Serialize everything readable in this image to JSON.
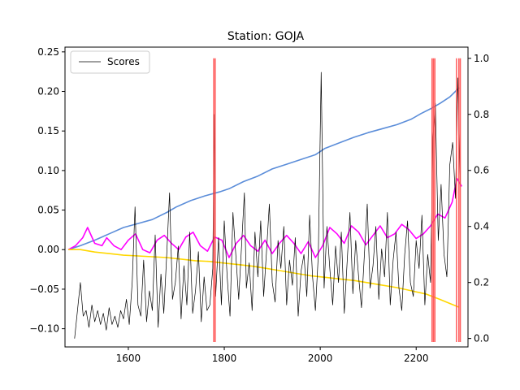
{
  "chart_data": {
    "type": "line",
    "title": "Station: GOJA",
    "x_range": [
      1468,
      2308
    ],
    "x_ticks": [
      1600,
      1800,
      2000,
      2200
    ],
    "y_left": {
      "ylim": [
        -0.123,
        0.256
      ],
      "ticks": [
        -0.1,
        -0.05,
        0.0,
        0.05,
        0.1,
        0.15,
        0.2,
        0.25
      ],
      "tick_labels": [
        "−0.10",
        "−0.05",
        "0.00",
        "0.05",
        "0.10",
        "0.15",
        "0.20",
        "0.25"
      ]
    },
    "y_right": {
      "ylim": [
        -0.03,
        1.04
      ],
      "ticks": [
        0.0,
        0.2,
        0.4,
        0.6,
        0.8,
        1.0
      ],
      "tick_labels": [
        "0.0",
        "0.2",
        "0.4",
        "0.6",
        "0.8",
        "1.0"
      ]
    },
    "legend": {
      "placement": "top-left",
      "entries": [
        {
          "label": "Scores",
          "color": "#000000"
        }
      ]
    },
    "series": [
      {
        "axis": "left",
        "color": "#5b8dd9",
        "x": [
          1475,
          1500,
          1530,
          1560,
          1590,
          1620,
          1650,
          1680,
          1700,
          1730,
          1760,
          1790,
          1810,
          1840,
          1870,
          1900,
          1930,
          1960,
          1990,
          2010,
          2040,
          2070,
          2100,
          2130,
          2160,
          2190,
          2210,
          2230,
          2250,
          2270,
          2290
        ],
        "y": [
          0.0,
          0.005,
          0.012,
          0.02,
          0.028,
          0.033,
          0.038,
          0.047,
          0.054,
          0.062,
          0.068,
          0.073,
          0.077,
          0.086,
          0.093,
          0.102,
          0.108,
          0.114,
          0.12,
          0.128,
          0.135,
          0.142,
          0.148,
          0.153,
          0.158,
          0.165,
          0.172,
          0.178,
          0.185,
          0.193,
          0.205
        ]
      },
      {
        "axis": "left",
        "color": "#ff00ff",
        "x": [
          1475,
          1490,
          1505,
          1515,
          1530,
          1545,
          1555,
          1570,
          1585,
          1600,
          1615,
          1630,
          1645,
          1660,
          1675,
          1690,
          1705,
          1720,
          1735,
          1750,
          1765,
          1780,
          1795,
          1810,
          1825,
          1840,
          1855,
          1870,
          1885,
          1900,
          1915,
          1930,
          1945,
          1960,
          1975,
          1990,
          2005,
          2020,
          2035,
          2050,
          2065,
          2080,
          2095,
          2110,
          2125,
          2140,
          2155,
          2170,
          2185,
          2200,
          2215,
          2230,
          2245,
          2260,
          2275,
          2285,
          2295
        ],
        "y": [
          0.0,
          0.005,
          0.015,
          0.028,
          0.008,
          0.005,
          0.015,
          0.005,
          0.0,
          0.012,
          0.02,
          0.0,
          -0.004,
          0.012,
          0.018,
          0.008,
          0.0,
          0.016,
          0.022,
          0.005,
          -0.002,
          0.016,
          0.012,
          -0.01,
          0.008,
          0.018,
          0.005,
          -0.002,
          0.012,
          -0.005,
          0.008,
          0.018,
          0.008,
          -0.005,
          0.01,
          -0.01,
          0.005,
          0.028,
          0.02,
          0.008,
          0.03,
          0.022,
          0.006,
          0.018,
          0.03,
          0.015,
          0.02,
          0.032,
          0.025,
          0.014,
          0.02,
          0.03,
          0.045,
          0.04,
          0.06,
          0.09,
          0.08
        ]
      },
      {
        "axis": "left",
        "color": "#ffd700",
        "x": [
          1475,
          1500,
          1530,
          1560,
          1590,
          1620,
          1650,
          1680,
          1710,
          1740,
          1770,
          1800,
          1830,
          1860,
          1890,
          1920,
          1950,
          1980,
          2010,
          2040,
          2070,
          2100,
          2130,
          2160,
          2190,
          2220,
          2250,
          2270,
          2290
        ],
        "y": [
          0.0,
          0.0,
          -0.003,
          -0.005,
          -0.007,
          -0.008,
          -0.009,
          -0.01,
          -0.012,
          -0.014,
          -0.015,
          -0.017,
          -0.019,
          -0.021,
          -0.024,
          -0.027,
          -0.03,
          -0.033,
          -0.035,
          -0.037,
          -0.039,
          -0.042,
          -0.045,
          -0.048,
          -0.052,
          -0.056,
          -0.063,
          -0.068,
          -0.073
        ]
      },
      {
        "axis": "right",
        "color": "#000000",
        "label": "Scores",
        "x": [
          1488,
          1500,
          1506,
          1512,
          1518,
          1524,
          1530,
          1536,
          1542,
          1548,
          1554,
          1560,
          1566,
          1572,
          1578,
          1584,
          1590,
          1596,
          1602,
          1608,
          1614,
          1620,
          1626,
          1632,
          1638,
          1644,
          1650,
          1656,
          1662,
          1668,
          1674,
          1680,
          1686,
          1692,
          1698,
          1704,
          1710,
          1716,
          1722,
          1728,
          1734,
          1740,
          1746,
          1752,
          1758,
          1764,
          1770,
          1776,
          1779,
          1782,
          1788,
          1794,
          1800,
          1806,
          1812,
          1818,
          1824,
          1830,
          1836,
          1842,
          1846,
          1852,
          1858,
          1864,
          1870,
          1876,
          1882,
          1888,
          1894,
          1900,
          1906,
          1912,
          1918,
          1924,
          1930,
          1936,
          1942,
          1948,
          1954,
          1960,
          1966,
          1972,
          1978,
          1984,
          1990,
          1996,
          2002,
          2008,
          2014,
          2020,
          2026,
          2032,
          2038,
          2044,
          2050,
          2056,
          2062,
          2068,
          2074,
          2080,
          2086,
          2092,
          2098,
          2104,
          2110,
          2116,
          2122,
          2128,
          2134,
          2140,
          2146,
          2152,
          2158,
          2164,
          2170,
          2176,
          2182,
          2188,
          2194,
          2200,
          2206,
          2212,
          2218,
          2224,
          2230,
          2235,
          2240,
          2246,
          2252,
          2258,
          2264,
          2270,
          2276,
          2282,
          2287,
          2292
        ],
        "y": [
          0.0,
          0.2,
          0.08,
          0.1,
          0.04,
          0.12,
          0.06,
          0.1,
          0.05,
          0.09,
          0.03,
          0.11,
          0.05,
          0.08,
          0.04,
          0.1,
          0.07,
          0.14,
          0.05,
          0.2,
          0.47,
          0.12,
          0.08,
          0.28,
          0.06,
          0.17,
          0.1,
          0.37,
          0.04,
          0.23,
          0.09,
          0.3,
          0.52,
          0.14,
          0.2,
          0.33,
          0.07,
          0.26,
          0.12,
          0.38,
          0.09,
          0.17,
          0.31,
          0.06,
          0.22,
          0.1,
          0.12,
          0.25,
          0.8,
          0.15,
          0.36,
          0.12,
          0.42,
          0.22,
          0.08,
          0.45,
          0.3,
          0.14,
          0.33,
          0.52,
          0.18,
          0.27,
          0.1,
          0.38,
          0.22,
          0.42,
          0.15,
          0.31,
          0.48,
          0.2,
          0.13,
          0.35,
          0.25,
          0.4,
          0.12,
          0.28,
          0.19,
          0.36,
          0.08,
          0.24,
          0.3,
          0.15,
          0.44,
          0.22,
          0.1,
          0.3,
          0.95,
          0.18,
          0.4,
          0.25,
          0.12,
          0.33,
          0.2,
          0.38,
          0.09,
          0.27,
          0.45,
          0.16,
          0.35,
          0.22,
          0.11,
          0.3,
          0.48,
          0.18,
          0.26,
          0.4,
          0.14,
          0.32,
          0.22,
          0.45,
          0.12,
          0.28,
          0.38,
          0.18,
          0.1,
          0.3,
          0.42,
          0.2,
          0.15,
          0.35,
          0.25,
          0.44,
          0.12,
          0.3,
          0.2,
          0.72,
          0.84,
          0.35,
          0.55,
          0.3,
          0.22,
          0.62,
          0.7,
          0.5,
          0.93,
          0.55
        ]
      }
    ],
    "vertical_markers": {
      "color": "#ff4d4d",
      "x": [
        1778,
        1781,
        2233,
        2236,
        2239,
        2284,
        2289,
        2292
      ],
      "top_right_value": 1.0
    }
  }
}
